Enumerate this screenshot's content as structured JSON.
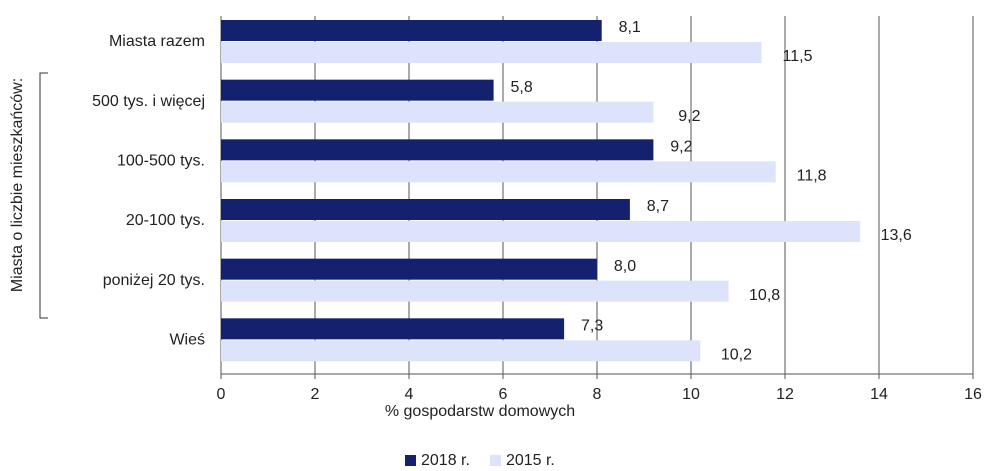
{
  "chart_data": {
    "type": "barh",
    "categories": [
      "Miasta razem",
      "500 tys. i więcej",
      "100-500 tys.",
      "20-100 tys.",
      "poniżej 20 tys.",
      "Wieś"
    ],
    "series": [
      {
        "name": "2018 r.",
        "color": "#14216e",
        "values": [
          8.1,
          5.8,
          9.2,
          8.7,
          8.0,
          7.3
        ],
        "value_labels": [
          "8,1",
          "5,8",
          "9,2",
          "8,7",
          "8,0",
          "7,3"
        ]
      },
      {
        "name": "2015 r.",
        "color": "#dde3fb",
        "values": [
          11.5,
          9.2,
          11.8,
          13.6,
          10.8,
          10.2
        ],
        "value_labels": [
          "11,5",
          "9,2",
          "11,8",
          "13,6",
          "10,8",
          "10,2"
        ]
      }
    ],
    "xlim": [
      0,
      16
    ],
    "xticks": [
      0,
      2,
      4,
      6,
      8,
      10,
      12,
      14,
      16
    ],
    "xlabel": "% gospodarstw domowych",
    "group_label": "Miasta o liczbie mieszkańców:",
    "grid": true,
    "legend": "bottom"
  }
}
